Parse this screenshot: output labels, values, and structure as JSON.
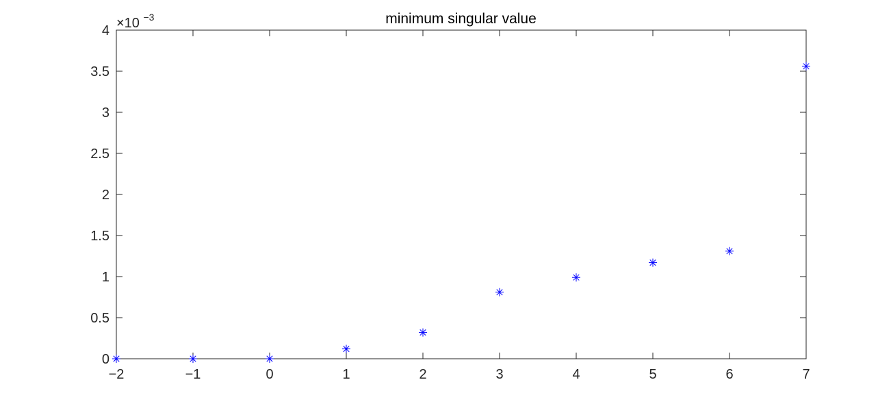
{
  "chart_data": {
    "type": "scatter",
    "title": "minimum singular value",
    "xlabel": "",
    "ylabel": "",
    "xlim": [
      -2,
      7
    ],
    "ylim": [
      0,
      0.004
    ],
    "x_ticks": [
      -2,
      -1,
      0,
      1,
      2,
      3,
      4,
      5,
      6,
      7
    ],
    "x_tick_labels": [
      "−2",
      "−1",
      "0",
      "1",
      "2",
      "3",
      "4",
      "5",
      "6",
      "7"
    ],
    "y_ticks": [
      0,
      0.0005,
      0.001,
      0.0015,
      0.002,
      0.0025,
      0.003,
      0.0035,
      0.004
    ],
    "y_tick_labels": [
      "0",
      "0.5",
      "1",
      "1.5",
      "2",
      "2.5",
      "3",
      "3.5",
      "4"
    ],
    "y_exponent": {
      "base": "×10",
      "power": "−3"
    },
    "grid": false,
    "marker": "*",
    "marker_color": "#0000ff",
    "axis_color": "#262626",
    "series": [
      {
        "x": [
          -2,
          -1,
          0,
          1,
          2,
          3,
          4,
          5,
          6,
          7
        ],
        "y": [
          0,
          0,
          0,
          0.00012,
          0.00032,
          0.00081,
          0.00099,
          0.00117,
          0.00131,
          0.00356
        ]
      }
    ]
  }
}
